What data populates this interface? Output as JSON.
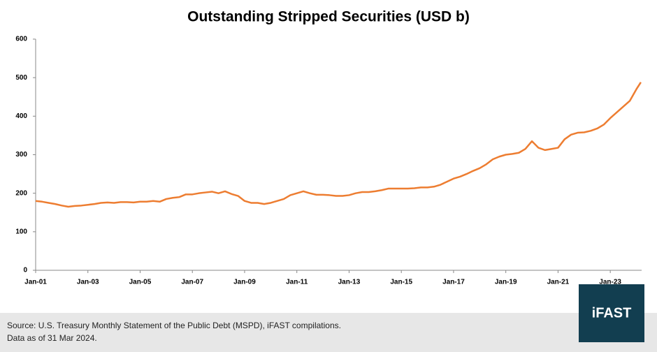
{
  "chart_data": {
    "type": "line",
    "title": "Outstanding Stripped Securities (USD b)",
    "x": [
      2001,
      2001.25,
      2001.5,
      2001.75,
      2002,
      2002.25,
      2002.5,
      2002.75,
      2003,
      2003.25,
      2003.5,
      2003.75,
      2004,
      2004.25,
      2004.5,
      2004.75,
      2005,
      2005.25,
      2005.5,
      2005.75,
      2006,
      2006.25,
      2006.5,
      2006.75,
      2007,
      2007.25,
      2007.5,
      2007.75,
      2008,
      2008.25,
      2008.5,
      2008.75,
      2009,
      2009.25,
      2009.5,
      2009.75,
      2010,
      2010.25,
      2010.5,
      2010.75,
      2011,
      2011.25,
      2011.5,
      2011.75,
      2012,
      2012.25,
      2012.5,
      2012.75,
      2013,
      2013.25,
      2013.5,
      2013.75,
      2014,
      2014.25,
      2014.5,
      2014.75,
      2015,
      2015.25,
      2015.5,
      2015.75,
      2016,
      2016.25,
      2016.5,
      2016.75,
      2017,
      2017.25,
      2017.5,
      2017.75,
      2018,
      2018.25,
      2018.5,
      2018.75,
      2019,
      2019.25,
      2019.5,
      2019.75,
      2020,
      2020.25,
      2020.5,
      2020.75,
      2021,
      2021.25,
      2021.5,
      2021.75,
      2022,
      2022.25,
      2022.5,
      2022.75,
      2023,
      2023.25,
      2023.5,
      2023.75,
      2024,
      2024.17
    ],
    "series": [
      {
        "color": "#ed7d31",
        "values": [
          180,
          178,
          175,
          172,
          168,
          165,
          167,
          168,
          170,
          172,
          175,
          176,
          175,
          177,
          177,
          176,
          178,
          178,
          180,
          178,
          185,
          188,
          190,
          197,
          197,
          200,
          202,
          204,
          200,
          205,
          198,
          193,
          180,
          175,
          175,
          172,
          175,
          180,
          185,
          195,
          200,
          205,
          200,
          196,
          196,
          195,
          193,
          193,
          195,
          200,
          203,
          203,
          205,
          208,
          212,
          212,
          212,
          212,
          213,
          215,
          215,
          217,
          222,
          230,
          238,
          243,
          250,
          258,
          265,
          275,
          288,
          295,
          300,
          302,
          305,
          315,
          335,
          318,
          312,
          315,
          318,
          340,
          352,
          357,
          358,
          362,
          368,
          378,
          395,
          410,
          425,
          440,
          470,
          488
        ]
      }
    ],
    "xlim": [
      2001,
      2024.2
    ],
    "xticks": [
      {
        "value": 2001,
        "label": "Jan-01"
      },
      {
        "value": 2003,
        "label": "Jan-03"
      },
      {
        "value": 2005,
        "label": "Jan-05"
      },
      {
        "value": 2007,
        "label": "Jan-07"
      },
      {
        "value": 2009,
        "label": "Jan-09"
      },
      {
        "value": 2011,
        "label": "Jan-11"
      },
      {
        "value": 2013,
        "label": "Jan-13"
      },
      {
        "value": 2015,
        "label": "Jan-15"
      },
      {
        "value": 2017,
        "label": "Jan-17"
      },
      {
        "value": 2019,
        "label": "Jan-19"
      },
      {
        "value": 2021,
        "label": "Jan-21"
      },
      {
        "value": 2023,
        "label": "Jan-23"
      }
    ],
    "ylim": [
      0,
      600
    ],
    "yticks": [
      0,
      100,
      200,
      300,
      400,
      500,
      600
    ],
    "grid": false
  },
  "footer": {
    "source": "Source: U.S. Treasury Monthly Statement of the Public Debt (MSPD), iFAST compilations.",
    "date": "Data as of 31 Mar 2024."
  },
  "logo": "iFAST"
}
